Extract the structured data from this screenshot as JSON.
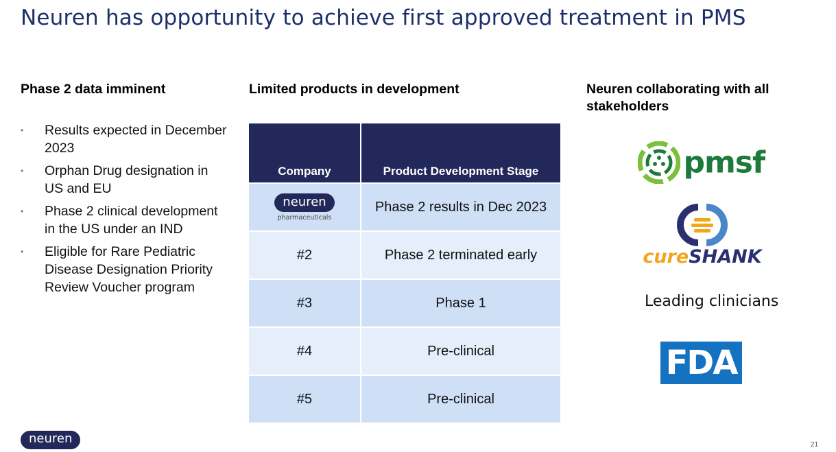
{
  "slide": {
    "title": "Neuren has opportunity to achieve first approved treatment in PMS",
    "page_number": "21",
    "footer_logo_text": "neuren"
  },
  "left": {
    "heading": "Phase 2 data imminent",
    "bullets": [
      "Results expected in December 2023",
      "Orphan Drug designation in US and EU",
      "Phase 2 clinical development in the US under an IND",
      "Eligible for Rare Pediatric Disease Designation Priority Review Voucher program"
    ]
  },
  "middle": {
    "heading": "Limited products in development",
    "table": {
      "headers": [
        "Company",
        "Product Development Stage"
      ],
      "rows": [
        {
          "company": "neuren",
          "company_sub": "pharmaceuticals",
          "stage": "Phase 2 results in Dec 2023"
        },
        {
          "company": "#2",
          "stage": "Phase 2 terminated early"
        },
        {
          "company": "#3",
          "stage": "Phase 1"
        },
        {
          "company": "#4",
          "stage": "Pre-clinical"
        },
        {
          "company": "#5",
          "stage": "Pre-clinical"
        }
      ]
    }
  },
  "right": {
    "heading": "Neuren collaborating with all stakeholders",
    "logos": {
      "pmsf": "pmsf",
      "cureshank_a": "cure",
      "cureshank_b": "SHANK",
      "fda": "FDA"
    },
    "clinicians": "Leading clinicians"
  },
  "colors": {
    "title": "#1d2f6b",
    "table_header": "#23285a",
    "row_dark": "#cfdff6",
    "row_light": "#e6eefb",
    "pmsf_green": "#1e7a3b",
    "cure_orange": "#f3a61c",
    "fda_blue": "#1572c0"
  }
}
